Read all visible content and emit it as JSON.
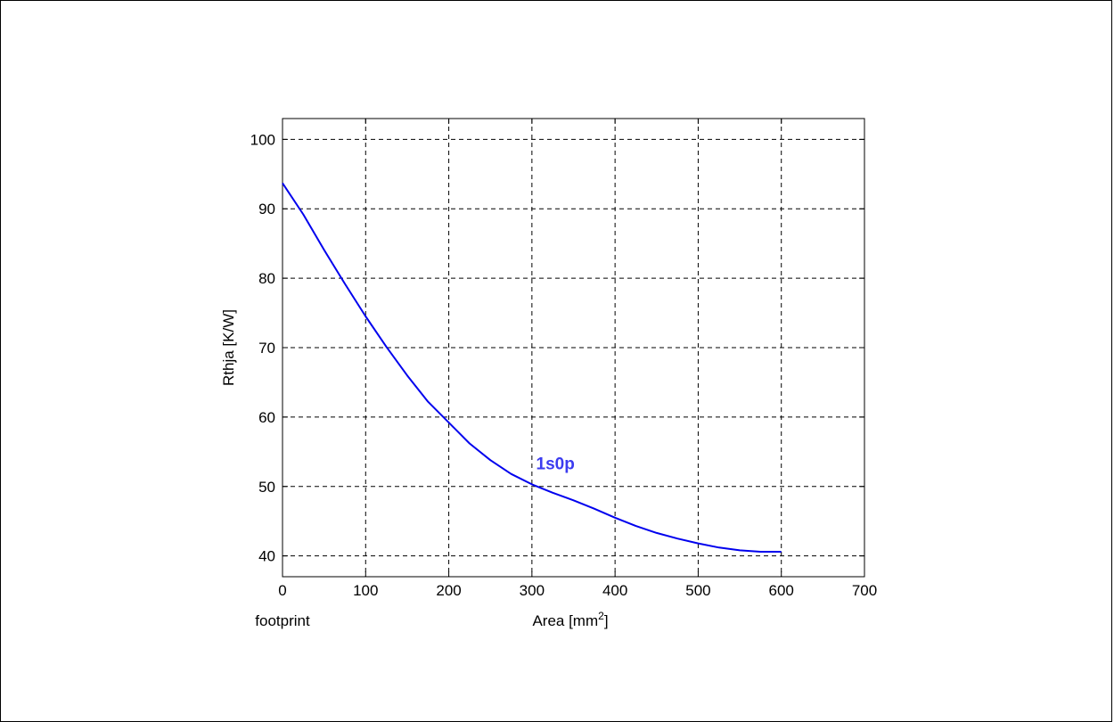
{
  "chart_data": {
    "type": "line",
    "title": "",
    "xlabel": "Area [mm",
    "xlabel_sup": "2",
    "xlabel_close": "]",
    "ylabel": "Rthja [K/W]",
    "x_extra_label": "footprint",
    "xlim": [
      0,
      700
    ],
    "ylim": [
      37,
      103
    ],
    "xticks": [
      0,
      100,
      200,
      300,
      400,
      500,
      600,
      700
    ],
    "yticks": [
      40,
      50,
      60,
      70,
      80,
      90,
      100
    ],
    "grid": true,
    "grid_style": "dashed",
    "series": [
      {
        "name": "1s0p",
        "color": "#0000ee",
        "label_color": "#3b3bf0",
        "label_anchor": [
          305,
          52.5
        ],
        "x": [
          0,
          25,
          50,
          75,
          100,
          125,
          150,
          175,
          200,
          225,
          250,
          275,
          300,
          325,
          350,
          375,
          400,
          425,
          450,
          475,
          500,
          525,
          550,
          575,
          600
        ],
        "y": [
          93.7,
          89.2,
          84.1,
          79.2,
          74.5,
          70.1,
          66.0,
          62.2,
          59.2,
          56.2,
          53.8,
          51.8,
          50.3,
          49.1,
          48.0,
          46.8,
          45.5,
          44.3,
          43.3,
          42.5,
          41.8,
          41.2,
          40.8,
          40.6,
          40.6
        ]
      }
    ]
  }
}
